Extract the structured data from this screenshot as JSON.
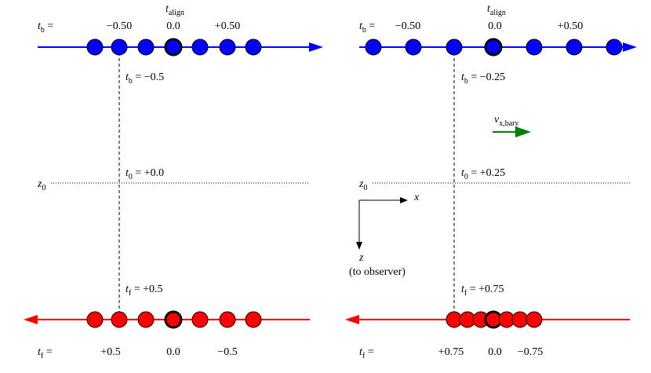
{
  "panels": [
    {
      "blue_axis": {
        "label": {
          "symbol": "t",
          "sub": "b",
          "text": " ="
        },
        "ticks": [
          "−0.50",
          "0.0",
          "+0.50"
        ],
        "align_label": {
          "symbol": "t",
          "sub": "align"
        }
      },
      "marker_top": {
        "symbol": "t",
        "sub": "b",
        "text": " = −0.5"
      },
      "mid": {
        "symbol": "t",
        "sub": "0",
        "text": " = +0.0"
      },
      "z_label": {
        "symbol": "z",
        "sub": "0"
      },
      "marker_bottom": {
        "symbol": "t",
        "sub": "f",
        "text": " = +0.5"
      },
      "red_axis": {
        "label": {
          "symbol": "t",
          "sub": "f",
          "text": " ="
        },
        "ticks": [
          "+0.5",
          "0.0",
          "−0.5"
        ]
      }
    },
    {
      "blue_axis": {
        "label": {
          "symbol": "t",
          "sub": "b",
          "text": " ="
        },
        "ticks": [
          "−0.50",
          "0.0",
          "+0.50"
        ],
        "align_label": {
          "symbol": "t",
          "sub": "align"
        }
      },
      "marker_top": {
        "symbol": "t",
        "sub": "b",
        "text": " = −0.25"
      },
      "mid": {
        "symbol": "t",
        "sub": "0",
        "text": " = +0.25"
      },
      "z_label": {
        "symbol": "z",
        "sub": "0"
      },
      "marker_bottom": {
        "symbol": "t",
        "sub": "f",
        "text": " = +0.75"
      },
      "red_axis": {
        "label": {
          "symbol": "t",
          "sub": "f",
          "text": " ="
        },
        "ticks": [
          "+0.75",
          "0.0",
          "−0.75"
        ]
      }
    }
  ],
  "velocity_label": {
    "symbol": "v",
    "sub": "x,bary"
  },
  "axes": {
    "x": "x",
    "z": "z",
    "z_note": "(to observer)"
  }
}
